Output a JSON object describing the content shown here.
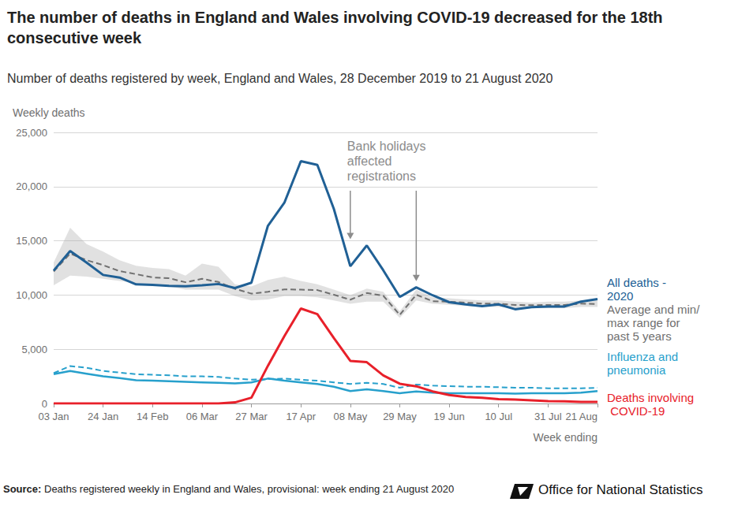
{
  "chart_data": {
    "type": "line",
    "title": "The number of deaths in England and Wales involving COVID-19 decreased for the 18th consecutive week",
    "subtitle": "Number of deaths registered by week, England and Wales, 28 December 2019 to 21 August 2020",
    "y_label": "Weekly deaths",
    "x_label": "Week ending",
    "source_label": "Source:",
    "source": "Deaths registered weekly in England and Wales, provisional: week ending 21 August 2020",
    "publisher": "Office for National Statistics",
    "annotation": {
      "text": [
        "Bank holidays",
        "affected",
        "registrations"
      ],
      "at": [
        18,
        22
      ]
    },
    "marker": "none",
    "grid": true,
    "ylim": [
      0,
      25000
    ],
    "yticks": [
      0,
      {
        "value": 5000,
        "label": "5,000"
      },
      {
        "value": 10000,
        "label": "10,000"
      },
      {
        "value": 15000,
        "label": "15,000"
      },
      {
        "value": 20000,
        "label": "20,000"
      },
      {
        "value": 25000,
        "label": "25,000"
      }
    ],
    "categories": [
      "03 Jan",
      null,
      null,
      "24 Jan",
      null,
      null,
      "14 Feb",
      null,
      null,
      "06 Mar",
      null,
      null,
      "27 Mar",
      null,
      null,
      "17 Apr",
      null,
      null,
      "08 May",
      null,
      null,
      "29 May",
      null,
      null,
      "19 Jun",
      null,
      null,
      "10 Jul",
      null,
      null,
      "31 Jul",
      null,
      null,
      "21 Aug"
    ],
    "series": [
      {
        "name": "All deaths - 2020",
        "color": "#206095",
        "line_style": "solid",
        "values": [
          12254,
          14058,
          12990,
          11856,
          11612,
          10986,
          10944,
          10841,
          10816,
          10895,
          11019,
          10645,
          11141,
          16387,
          18516,
          22351,
          21997,
          17953,
          12657,
          14573,
          12288,
          9824,
          10709,
          9976,
          9339,
          9140,
          8979,
          9140,
          8690,
          8891,
          8946,
          8945,
          9392,
          9631
        ]
      },
      {
        "name": "Average and min/max range for past 5 years",
        "color": "#707070",
        "line_style": "dashed",
        "values": [
          12175,
          13822,
          13216,
          12760,
          12206,
          11925,
          11627,
          11548,
          11183,
          11498,
          11205,
          10573,
          10130,
          10305,
          10520,
          10497,
          10458,
          10026,
          9576,
          10188,
          9940,
          8171,
          10029,
          9434,
          9387,
          9299,
          9217,
          9195,
          9084,
          9062,
          9089,
          9085,
          9208,
          9177
        ],
        "min": [
          10900,
          11800,
          11700,
          11500,
          11300,
          11100,
          10900,
          10800,
          10500,
          10500,
          10500,
          9900,
          9500,
          9600,
          9900,
          9900,
          9800,
          9500,
          9200,
          9400,
          9400,
          7900,
          9500,
          9200,
          9100,
          9000,
          8900,
          8900,
          8800,
          8800,
          8800,
          8800,
          8900,
          8900
        ],
        "max": [
          13000,
          16200,
          14700,
          14000,
          13200,
          12700,
          12500,
          12400,
          11800,
          12900,
          12600,
          11000,
          10800,
          11400,
          11700,
          11300,
          11000,
          10500,
          10000,
          10600,
          10300,
          8500,
          10500,
          9800,
          9700,
          9600,
          9500,
          9500,
          9400,
          9300,
          9400,
          9400,
          9500,
          9500
        ]
      },
      {
        "name": "Influenza and pneumonia",
        "color": "#27a0cc",
        "line_style": "solid",
        "values": [
          2700,
          3000,
          2750,
          2500,
          2350,
          2150,
          2100,
          2050,
          2000,
          1950,
          1900,
          1850,
          1950,
          2300,
          2100,
          1950,
          1800,
          1550,
          1150,
          1300,
          1150,
          950,
          1100,
          1000,
          950,
          950,
          950,
          950,
          900,
          950,
          950,
          950,
          1000,
          1150
        ]
      },
      {
        "color": "#27a0cc",
        "line_style": "dashed",
        "values": [
          2800,
          3450,
          3300,
          3000,
          2850,
          2700,
          2650,
          2600,
          2500,
          2500,
          2450,
          2300,
          2200,
          2250,
          2300,
          2200,
          2100,
          1950,
          1800,
          1900,
          1800,
          1450,
          1750,
          1650,
          1600,
          1550,
          1550,
          1500,
          1450,
          1450,
          1400,
          1400,
          1400,
          1450
        ]
      },
      {
        "name": "Deaths involving COVID-19",
        "color": "#e8202a",
        "line_style": "solid",
        "values": [
          0,
          0,
          0,
          0,
          0,
          0,
          0,
          0,
          0,
          0,
          5,
          103,
          539,
          3475,
          6213,
          8758,
          8237,
          6035,
          3930,
          3810,
          2589,
          1822,
          1588,
          1114,
          783,
          606,
          532,
          393,
          366,
          295,
          217,
          193,
          152,
          138
        ]
      }
    ]
  }
}
